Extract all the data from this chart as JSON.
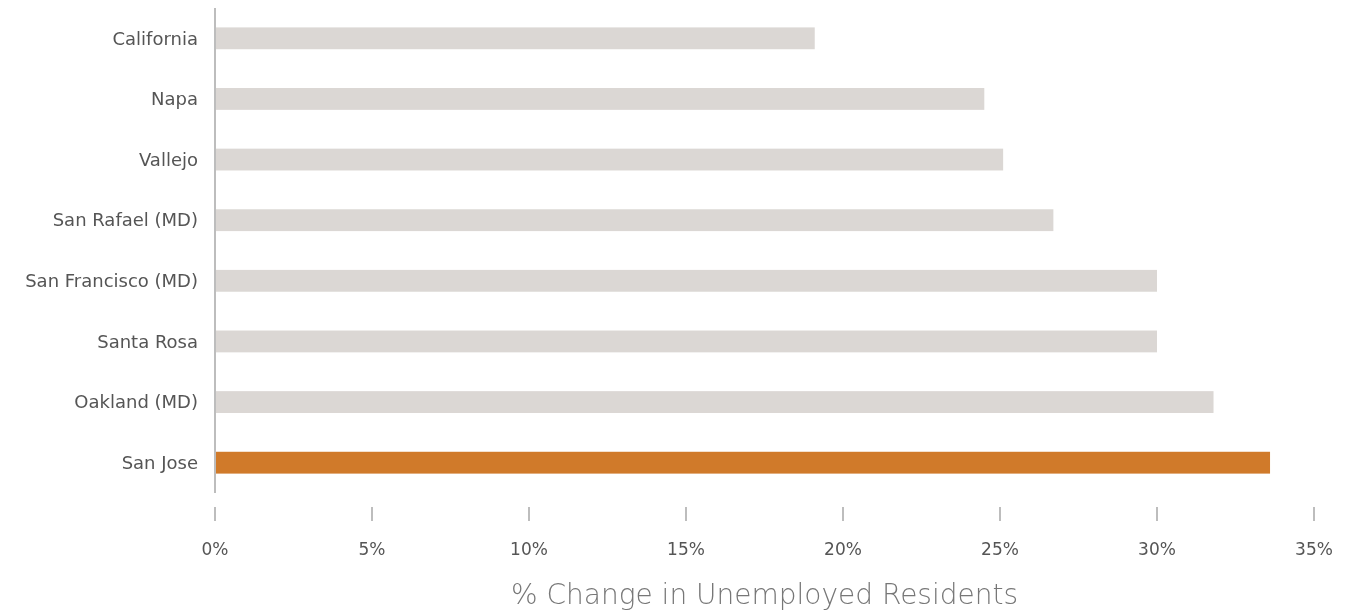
{
  "chart_data": {
    "type": "bar",
    "orientation": "horizontal",
    "xlabel": "% Change in Unemployed Residents",
    "categories": [
      "California",
      "Napa",
      "Vallejo",
      "San Rafael (MD)",
      "San Francisco (MD)",
      "Santa Rosa",
      "Oakland (MD)",
      "San Jose"
    ],
    "values": [
      19.1,
      24.5,
      25.1,
      26.7,
      30.0,
      30.0,
      31.8,
      33.6
    ],
    "colors": [
      "#dbd7d4",
      "#dbd7d4",
      "#dbd7d4",
      "#dbd7d4",
      "#dbd7d4",
      "#dbd7d4",
      "#dbd7d4",
      "#d07a2a"
    ],
    "xlim": [
      0,
      35
    ],
    "xticks": [
      {
        "value": 0,
        "label": "0%"
      },
      {
        "value": 5,
        "label": "5%"
      },
      {
        "value": 10,
        "label": "10%"
      },
      {
        "value": 15,
        "label": "15%"
      },
      {
        "value": 20,
        "label": "20%"
      },
      {
        "value": 25,
        "label": "25%"
      },
      {
        "value": 30,
        "label": "30%"
      },
      {
        "value": 35,
        "label": "35%"
      }
    ],
    "grid": false
  }
}
